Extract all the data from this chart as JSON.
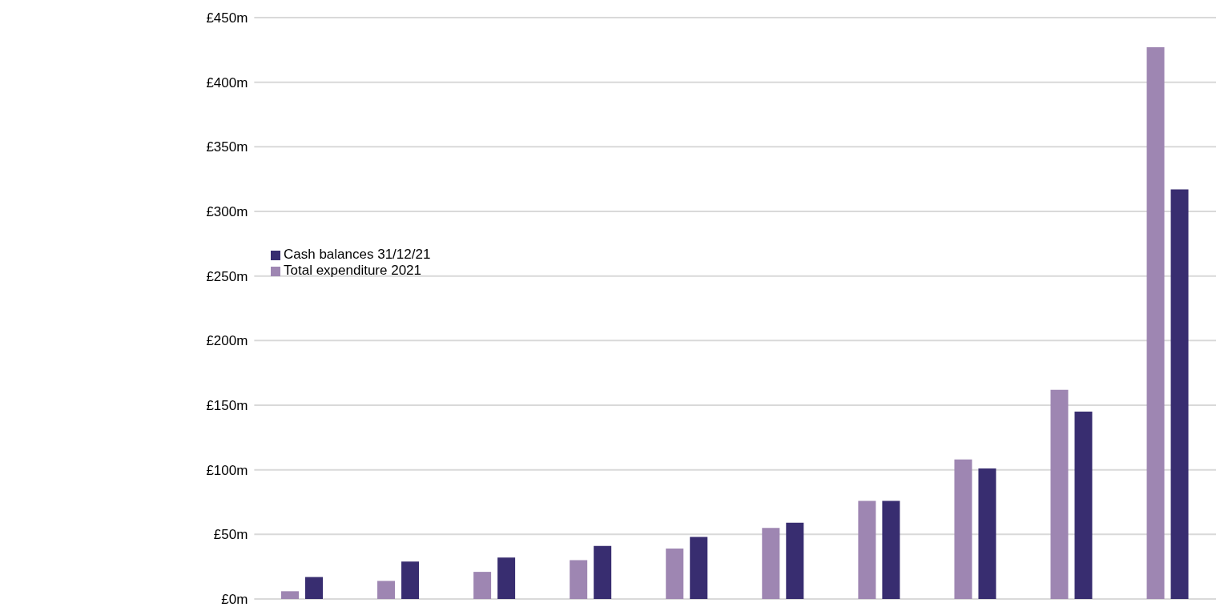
{
  "chart_data": {
    "type": "bar",
    "categories": [
      null,
      null,
      null,
      null,
      null,
      null,
      null,
      null,
      null,
      null
    ],
    "series": [
      {
        "name": "Total expenditure 2021",
        "color": "#9e86b2",
        "values": [
          6,
          14,
          21,
          30,
          39,
          55,
          76,
          108,
          162,
          427
        ]
      },
      {
        "name": "Cash balances 31/12/21",
        "color": "#382d70",
        "values": [
          17,
          29,
          32,
          41,
          48,
          59,
          76,
          101,
          145,
          317
        ]
      }
    ],
    "ylim": [
      0,
      450
    ],
    "yticks": [
      {
        "value": 0,
        "label": "£0m"
      },
      {
        "value": 50,
        "label": "£50m"
      },
      {
        "value": 100,
        "label": "£100m"
      },
      {
        "value": 150,
        "label": "£150m"
      },
      {
        "value": 200,
        "label": "£200m"
      },
      {
        "value": 250,
        "label": "£250m"
      },
      {
        "value": 300,
        "label": "£300m"
      },
      {
        "value": 350,
        "label": "£350m"
      },
      {
        "value": 400,
        "label": "£400m"
      },
      {
        "value": 450,
        "label": "£450m"
      }
    ],
    "grid": "y",
    "legend": "left"
  }
}
